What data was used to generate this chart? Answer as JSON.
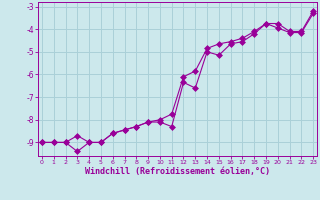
{
  "xlabel": "Windchill (Refroidissement éolien,°C)",
  "bg_color": "#cce8ec",
  "line_color": "#990099",
  "xlim": [
    -0.3,
    23.3
  ],
  "ylim": [
    -9.6,
    -2.8
  ],
  "yticks": [
    -9,
    -8,
    -7,
    -6,
    -5,
    -4,
    -3
  ],
  "xticks": [
    0,
    1,
    2,
    3,
    4,
    5,
    6,
    7,
    8,
    9,
    10,
    11,
    12,
    13,
    14,
    15,
    16,
    17,
    18,
    19,
    20,
    21,
    22,
    23
  ],
  "line1_x": [
    0,
    1,
    2,
    3,
    4,
    5,
    6,
    7,
    8,
    9,
    10,
    11,
    12,
    13,
    14,
    15,
    16,
    17,
    18,
    19,
    20,
    21,
    22,
    23
  ],
  "line1_y": [
    -9,
    -9,
    -9,
    -9.4,
    -9,
    -9,
    -8.6,
    -8.45,
    -8.3,
    -8.1,
    -8.1,
    -8.3,
    -6.35,
    -6.6,
    -5.0,
    -5.15,
    -4.65,
    -4.55,
    -4.2,
    -3.75,
    -3.95,
    -4.15,
    -4.15,
    -3.3
  ],
  "line2_x": [
    0,
    1,
    2,
    3,
    4,
    5,
    6,
    7,
    8,
    9,
    10,
    11,
    12,
    13,
    14,
    15,
    16,
    17,
    18,
    19,
    20,
    21,
    22,
    23
  ],
  "line2_y": [
    -9,
    -9,
    -9,
    -8.7,
    -9,
    -9,
    -8.6,
    -8.45,
    -8.3,
    -8.1,
    -8.0,
    -7.75,
    -6.1,
    -5.85,
    -4.85,
    -4.65,
    -4.55,
    -4.4,
    -4.1,
    -3.75,
    -3.75,
    -4.1,
    -4.1,
    -3.2
  ],
  "grid_color": "#aad0d8",
  "tick_label_color": "#990099",
  "axis_color": "#990099",
  "xlabel_color": "#990099",
  "xlabel_fontsize": 6,
  "marker_size": 3
}
